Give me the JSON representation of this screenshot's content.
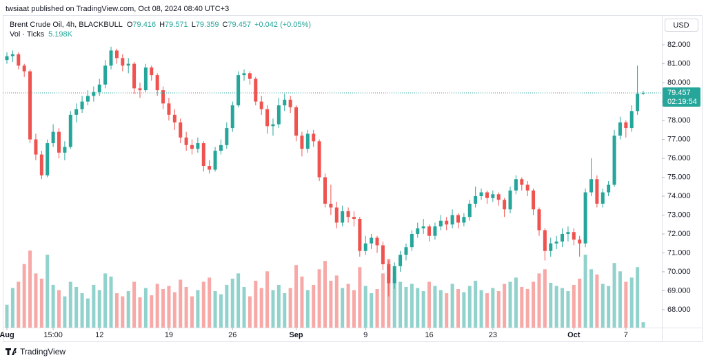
{
  "published": "twsiaat published on TradingView.com, Oct 08, 2024 08:40 UTC+3",
  "brand": "TradingView",
  "chart_data": {
    "type": "candlestick",
    "title": "Brent Crude Oil, 4h, BLACKBULL",
    "ohlc_keys": [
      "O",
      "H",
      "L",
      "C"
    ],
    "change": "+0.042 (+0.05%)",
    "currency": "USD",
    "countdown": "02:19:54",
    "up_color": "#26a69a",
    "down_color": "#ef5350",
    "volume_indicator": {
      "name": "Vol · Ticks",
      "last": {
        "value": 5198,
        "label": "5.198K"
      }
    },
    "ylim": [
      67.05,
      83.57
    ],
    "yticks": [
      {
        "value": 68,
        "label": "68.000"
      },
      {
        "value": 69,
        "label": "69.000"
      },
      {
        "value": 70,
        "label": "70.000"
      },
      {
        "value": 71,
        "label": "71.000"
      },
      {
        "value": 72,
        "label": "72.000"
      },
      {
        "value": 73,
        "label": "73.000"
      },
      {
        "value": 74,
        "label": "74.000"
      },
      {
        "value": 75,
        "label": "75.000"
      },
      {
        "value": 76,
        "label": "76.000"
      },
      {
        "value": 77,
        "label": "77.000"
      },
      {
        "value": 78,
        "label": "78.000"
      },
      {
        "value": 79,
        "label": "79.000"
      },
      {
        "value": 80,
        "label": "80.000"
      },
      {
        "value": 81,
        "label": "81.000"
      },
      {
        "value": 82,
        "label": "82.000"
      }
    ],
    "x_labels": [
      {
        "value": 0,
        "label": "Aug"
      },
      {
        "value": 8,
        "label": "15:00"
      },
      {
        "value": 16,
        "label": "12"
      },
      {
        "value": 28,
        "label": "19"
      },
      {
        "value": 39,
        "label": "26"
      },
      {
        "value": 50,
        "label": "Sep"
      },
      {
        "value": 62,
        "label": "9"
      },
      {
        "value": 73,
        "label": "16"
      },
      {
        "value": 84,
        "label": "23"
      },
      {
        "value": 98,
        "label": "Oct"
      },
      {
        "value": 107,
        "label": "7"
      }
    ],
    "ohlc": [
      [
        81.2,
        81.6,
        81.0,
        81.4
      ],
      [
        81.4,
        81.7,
        81.1,
        81.5
      ],
      [
        81.5,
        81.6,
        80.7,
        80.9
      ],
      [
        80.9,
        81.0,
        80.3,
        80.6
      ],
      [
        80.6,
        80.7,
        76.8,
        77.0
      ],
      [
        77.0,
        77.3,
        75.9,
        76.2
      ],
      [
        76.2,
        76.4,
        74.9,
        75.1
      ],
      [
        75.1,
        77.0,
        75.0,
        76.8
      ],
      [
        76.8,
        77.8,
        76.6,
        77.4
      ],
      [
        77.4,
        77.6,
        76.0,
        76.3
      ],
      [
        76.3,
        76.9,
        75.9,
        76.6
      ],
      [
        76.6,
        78.5,
        76.5,
        78.3
      ],
      [
        78.3,
        78.9,
        77.9,
        78.6
      ],
      [
        78.6,
        79.3,
        78.4,
        79.0
      ],
      [
        79.0,
        79.6,
        78.8,
        79.3
      ],
      [
        79.3,
        79.8,
        79.0,
        79.5
      ],
      [
        79.5,
        80.2,
        79.3,
        79.9
      ],
      [
        79.9,
        81.2,
        79.7,
        80.9
      ],
      [
        80.9,
        81.9,
        80.7,
        81.7
      ],
      [
        81.7,
        81.8,
        81.0,
        81.3
      ],
      [
        81.3,
        81.5,
        80.6,
        80.9
      ],
      [
        80.9,
        81.3,
        80.5,
        81.0
      ],
      [
        81.0,
        81.1,
        79.4,
        79.7
      ],
      [
        79.7,
        80.0,
        79.2,
        79.6
      ],
      [
        79.6,
        81.0,
        79.5,
        80.8
      ],
      [
        80.8,
        80.9,
        80.1,
        80.4
      ],
      [
        80.4,
        80.5,
        79.3,
        79.6
      ],
      [
        79.6,
        79.8,
        78.6,
        78.9
      ],
      [
        78.9,
        79.2,
        78.0,
        78.3
      ],
      [
        78.3,
        78.6,
        77.5,
        77.9
      ],
      [
        77.9,
        78.1,
        76.8,
        77.1
      ],
      [
        77.1,
        77.4,
        76.4,
        76.7
      ],
      [
        76.7,
        77.0,
        76.2,
        76.5
      ],
      [
        76.5,
        77.1,
        76.3,
        76.8
      ],
      [
        76.8,
        76.9,
        75.3,
        75.6
      ],
      [
        75.6,
        75.9,
        75.2,
        75.4
      ],
      [
        75.4,
        76.6,
        75.3,
        76.4
      ],
      [
        76.4,
        77.0,
        76.2,
        76.7
      ],
      [
        76.7,
        77.9,
        76.5,
        77.6
      ],
      [
        77.6,
        79.0,
        77.4,
        78.8
      ],
      [
        78.8,
        80.6,
        78.7,
        80.4
      ],
      [
        80.4,
        80.7,
        80.1,
        80.5
      ],
      [
        80.5,
        80.6,
        79.9,
        80.2
      ],
      [
        80.2,
        80.3,
        78.8,
        79.0
      ],
      [
        79.0,
        79.3,
        78.3,
        78.6
      ],
      [
        78.6,
        78.8,
        77.3,
        77.7
      ],
      [
        77.7,
        78.1,
        77.2,
        77.8
      ],
      [
        77.8,
        79.2,
        77.6,
        78.8
      ],
      [
        78.8,
        79.4,
        78.5,
        79.1
      ],
      [
        79.1,
        79.3,
        78.4,
        78.7
      ],
      [
        78.7,
        78.8,
        76.9,
        77.2
      ],
      [
        77.2,
        77.4,
        76.1,
        76.5
      ],
      [
        76.5,
        77.5,
        76.3,
        77.3
      ],
      [
        77.3,
        77.5,
        76.6,
        76.9
      ],
      [
        76.9,
        77.0,
        74.8,
        75.0
      ],
      [
        75.0,
        75.2,
        73.4,
        73.6
      ],
      [
        73.6,
        74.6,
        73.0,
        73.4
      ],
      [
        73.4,
        73.7,
        72.3,
        72.6
      ],
      [
        72.6,
        73.5,
        72.4,
        73.2
      ],
      [
        73.2,
        73.4,
        72.6,
        72.9
      ],
      [
        72.9,
        73.2,
        72.4,
        72.8
      ],
      [
        72.8,
        72.9,
        70.8,
        71.1
      ],
      [
        71.1,
        71.9,
        70.9,
        71.5
      ],
      [
        71.5,
        72.0,
        71.2,
        71.8
      ],
      [
        71.8,
        71.9,
        71.0,
        71.4
      ],
      [
        71.4,
        71.6,
        70.1,
        70.4
      ],
      [
        70.4,
        70.6,
        68.7,
        69.4
      ],
      [
        69.4,
        70.5,
        69.1,
        70.3
      ],
      [
        70.3,
        71.1,
        70.0,
        70.9
      ],
      [
        70.9,
        71.5,
        70.6,
        71.3
      ],
      [
        71.3,
        72.2,
        71.1,
        72.0
      ],
      [
        72.0,
        72.6,
        71.8,
        72.3
      ],
      [
        72.3,
        72.8,
        72.0,
        72.4
      ],
      [
        72.4,
        72.5,
        71.6,
        71.9
      ],
      [
        71.9,
        72.6,
        71.7,
        72.4
      ],
      [
        72.4,
        73.0,
        72.2,
        72.7
      ],
      [
        72.7,
        72.9,
        72.2,
        72.5
      ],
      [
        72.5,
        73.3,
        72.3,
        73.0
      ],
      [
        73.0,
        73.1,
        72.3,
        72.6
      ],
      [
        72.6,
        73.1,
        72.4,
        72.9
      ],
      [
        72.9,
        73.8,
        72.7,
        73.6
      ],
      [
        73.6,
        74.5,
        73.4,
        74.0
      ],
      [
        74.0,
        74.4,
        73.8,
        74.2
      ],
      [
        74.2,
        74.3,
        73.6,
        73.9
      ],
      [
        73.9,
        74.3,
        73.7,
        74.1
      ],
      [
        74.1,
        74.2,
        73.5,
        73.8
      ],
      [
        73.8,
        73.9,
        72.9,
        73.3
      ],
      [
        73.3,
        74.5,
        73.1,
        74.3
      ],
      [
        74.3,
        75.1,
        74.1,
        74.9
      ],
      [
        74.9,
        75.0,
        74.3,
        74.6
      ],
      [
        74.6,
        74.8,
        74.0,
        74.3
      ],
      [
        74.3,
        74.4,
        73.0,
        73.3
      ],
      [
        73.3,
        73.4,
        71.9,
        72.2
      ],
      [
        72.2,
        72.3,
        70.6,
        71.1
      ],
      [
        71.1,
        71.8,
        70.8,
        71.5
      ],
      [
        71.5,
        71.9,
        71.2,
        71.6
      ],
      [
        71.6,
        72.3,
        71.3,
        72.0
      ],
      [
        72.0,
        72.4,
        71.6,
        72.1
      ],
      [
        72.1,
        72.3,
        71.4,
        71.7
      ],
      [
        71.7,
        71.9,
        70.8,
        71.5
      ],
      [
        71.5,
        74.4,
        71.3,
        74.2
      ],
      [
        74.2,
        76.0,
        74.0,
        74.9
      ],
      [
        74.9,
        75.1,
        73.4,
        73.6
      ],
      [
        73.6,
        74.4,
        73.4,
        74.2
      ],
      [
        74.2,
        74.8,
        74.0,
        74.6
      ],
      [
        74.6,
        77.5,
        74.5,
        77.2
      ],
      [
        77.2,
        78.2,
        77.0,
        77.9
      ],
      [
        77.9,
        78.0,
        77.1,
        77.6
      ],
      [
        77.6,
        78.8,
        77.4,
        78.5
      ],
      [
        78.5,
        80.9,
        78.3,
        79.416
      ],
      [
        79.416,
        79.571,
        79.359,
        79.457
      ]
    ],
    "volumes": [
      22000,
      38000,
      44000,
      61000,
      74000,
      52000,
      47000,
      70000,
      41000,
      36000,
      30000,
      44000,
      39000,
      33000,
      28000,
      41000,
      36000,
      52000,
      49000,
      33000,
      30000,
      35000,
      44000,
      29000,
      38000,
      31000,
      42000,
      37000,
      40000,
      34000,
      46000,
      39000,
      30000,
      36000,
      44000,
      48000,
      35000,
      32000,
      41000,
      47000,
      52000,
      39000,
      30000,
      45000,
      38000,
      54000,
      36000,
      41000,
      33000,
      38000,
      60000,
      49000,
      36000,
      41000,
      56000,
      64000,
      45000,
      50000,
      38000,
      42000,
      36000,
      58000,
      40000,
      33000,
      37000,
      52000,
      66000,
      48000,
      44000,
      39000,
      42000,
      38000,
      35000,
      44000,
      40000,
      36000,
      33000,
      42000,
      37000,
      34000,
      40000,
      45000,
      36000,
      33000,
      38000,
      35000,
      42000,
      44000,
      48000,
      39000,
      37000,
      44000,
      52000,
      56000,
      43000,
      40000,
      38000,
      35000,
      41000,
      47000,
      70000,
      56000,
      51000,
      42000,
      40000,
      62000,
      54000,
      44000,
      48000,
      58000,
      5198
    ]
  }
}
